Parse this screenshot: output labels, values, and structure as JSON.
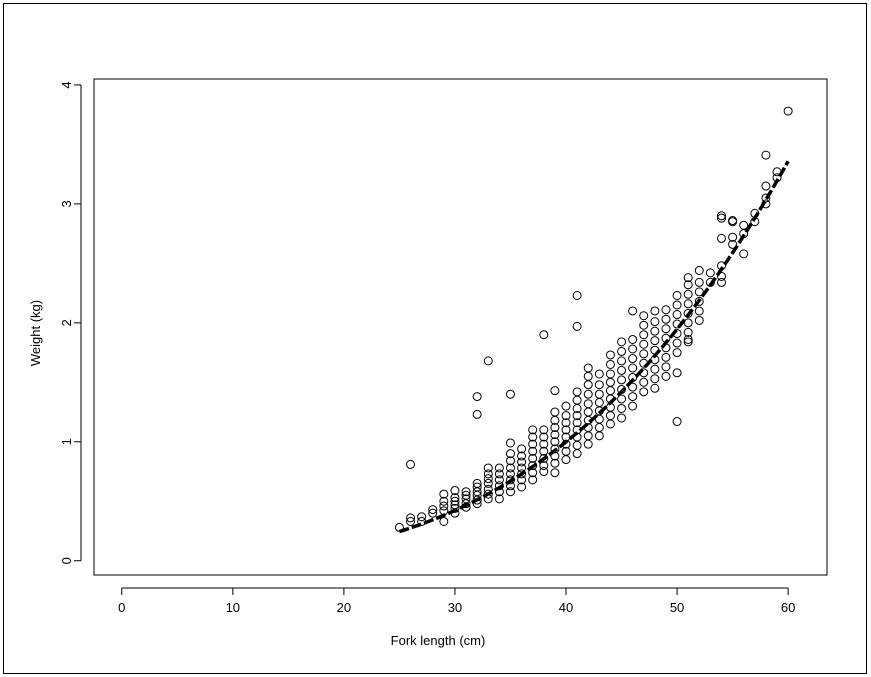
{
  "chart_data": {
    "type": "scatter",
    "title": "",
    "xlabel": "Fork length (cm)",
    "ylabel": "Weight (kg)",
    "xlim": [
      -2.5,
      63.5
    ],
    "ylim": [
      -0.12,
      4.05
    ],
    "x_ticks": [
      0,
      10,
      20,
      30,
      40,
      50,
      60
    ],
    "y_ticks": [
      0,
      1,
      2,
      3,
      4
    ],
    "grid": false,
    "legend": "none",
    "marker": "open-circle",
    "colors": {
      "points": "#000000",
      "line": "#000000",
      "background": "#ffffff"
    },
    "fit_curve": {
      "type": "power",
      "a": 1.62e-05,
      "b": 2.99,
      "x_range": [
        25,
        60
      ],
      "style": "thick-dashed"
    },
    "band_points": [
      [
        25,
        0.28
      ],
      [
        26,
        0.33
      ],
      [
        26,
        0.36
      ],
      [
        27,
        0.33
      ],
      [
        27,
        0.37
      ],
      [
        28,
        0.4
      ],
      [
        28,
        0.43
      ],
      [
        29,
        0.33
      ],
      [
        29,
        0.42
      ],
      [
        29,
        0.46
      ],
      [
        29,
        0.5
      ],
      [
        29,
        0.56
      ],
      [
        30,
        0.4
      ],
      [
        30,
        0.44
      ],
      [
        30,
        0.47
      ],
      [
        30,
        0.5
      ],
      [
        30,
        0.53
      ],
      [
        30,
        0.59
      ],
      [
        31,
        0.45
      ],
      [
        31,
        0.48
      ],
      [
        31,
        0.52
      ],
      [
        31,
        0.55
      ],
      [
        31,
        0.58
      ],
      [
        32,
        0.48
      ],
      [
        32,
        0.51
      ],
      [
        32,
        0.55
      ],
      [
        32,
        0.58
      ],
      [
        32,
        0.62
      ],
      [
        32,
        0.65
      ],
      [
        33,
        0.52
      ],
      [
        33,
        0.56
      ],
      [
        33,
        0.6
      ],
      [
        33,
        0.65
      ],
      [
        33,
        0.69
      ],
      [
        33,
        0.73
      ],
      [
        33,
        0.78
      ],
      [
        34,
        0.52
      ],
      [
        34,
        0.58
      ],
      [
        34,
        0.63
      ],
      [
        34,
        0.68
      ],
      [
        34,
        0.73
      ],
      [
        34,
        0.78
      ],
      [
        35,
        0.58
      ],
      [
        35,
        0.63
      ],
      [
        35,
        0.68
      ],
      [
        35,
        0.73
      ],
      [
        35,
        0.78
      ],
      [
        35,
        0.84
      ],
      [
        35,
        0.9
      ],
      [
        35,
        0.99
      ],
      [
        36,
        0.62
      ],
      [
        36,
        0.68
      ],
      [
        36,
        0.73
      ],
      [
        36,
        0.78
      ],
      [
        36,
        0.83
      ],
      [
        36,
        0.88
      ],
      [
        36,
        0.94
      ],
      [
        37,
        0.68
      ],
      [
        37,
        0.74
      ],
      [
        37,
        0.8
      ],
      [
        37,
        0.86
      ],
      [
        37,
        0.92
      ],
      [
        37,
        0.98
      ],
      [
        37,
        1.04
      ],
      [
        37,
        1.1
      ],
      [
        38,
        0.75
      ],
      [
        38,
        0.8
      ],
      [
        38,
        0.86
      ],
      [
        38,
        0.92
      ],
      [
        38,
        0.98
      ],
      [
        38,
        1.04
      ],
      [
        38,
        1.1
      ],
      [
        39,
        0.74
      ],
      [
        39,
        0.82
      ],
      [
        39,
        0.88
      ],
      [
        39,
        0.94
      ],
      [
        39,
        1.0
      ],
      [
        39,
        1.06
      ],
      [
        39,
        1.12
      ],
      [
        39,
        1.18
      ],
      [
        39,
        1.25
      ],
      [
        40,
        0.85
      ],
      [
        40,
        0.92
      ],
      [
        40,
        0.98
      ],
      [
        40,
        1.04
      ],
      [
        40,
        1.1
      ],
      [
        40,
        1.16
      ],
      [
        40,
        1.22
      ],
      [
        40,
        1.3
      ],
      [
        41,
        0.9
      ],
      [
        41,
        0.97
      ],
      [
        41,
        1.04
      ],
      [
        41,
        1.1
      ],
      [
        41,
        1.16
      ],
      [
        41,
        1.22
      ],
      [
        41,
        1.28
      ],
      [
        41,
        1.35
      ],
      [
        41,
        1.42
      ],
      [
        42,
        0.98
      ],
      [
        42,
        1.05
      ],
      [
        42,
        1.12
      ],
      [
        42,
        1.18
      ],
      [
        42,
        1.25
      ],
      [
        42,
        1.32
      ],
      [
        42,
        1.4
      ],
      [
        42,
        1.48
      ],
      [
        42,
        1.55
      ],
      [
        42,
        1.62
      ],
      [
        43,
        1.05
      ],
      [
        43,
        1.12
      ],
      [
        43,
        1.19
      ],
      [
        43,
        1.26
      ],
      [
        43,
        1.33
      ],
      [
        43,
        1.4
      ],
      [
        43,
        1.48
      ],
      [
        43,
        1.57
      ],
      [
        44,
        1.15
      ],
      [
        44,
        1.22
      ],
      [
        44,
        1.29
      ],
      [
        44,
        1.36
      ],
      [
        44,
        1.43
      ],
      [
        44,
        1.5
      ],
      [
        44,
        1.57
      ],
      [
        44,
        1.65
      ],
      [
        44,
        1.73
      ],
      [
        45,
        1.2
      ],
      [
        45,
        1.28
      ],
      [
        45,
        1.36
      ],
      [
        45,
        1.44
      ],
      [
        45,
        1.52
      ],
      [
        45,
        1.6
      ],
      [
        45,
        1.68
      ],
      [
        45,
        1.76
      ],
      [
        45,
        1.84
      ],
      [
        46,
        1.3
      ],
      [
        46,
        1.38
      ],
      [
        46,
        1.46
      ],
      [
        46,
        1.54
      ],
      [
        46,
        1.62
      ],
      [
        46,
        1.7
      ],
      [
        46,
        1.78
      ],
      [
        46,
        1.86
      ],
      [
        47,
        1.42
      ],
      [
        47,
        1.5
      ],
      [
        47,
        1.58
      ],
      [
        47,
        1.66
      ],
      [
        47,
        1.74
      ],
      [
        47,
        1.82
      ],
      [
        47,
        1.9
      ],
      [
        47,
        1.98
      ],
      [
        47,
        2.06
      ],
      [
        48,
        1.45
      ],
      [
        48,
        1.53
      ],
      [
        48,
        1.61
      ],
      [
        48,
        1.69
      ],
      [
        48,
        1.77
      ],
      [
        48,
        1.85
      ],
      [
        48,
        1.93
      ],
      [
        48,
        2.01
      ],
      [
        48,
        2.1
      ],
      [
        49,
        1.55
      ],
      [
        49,
        1.63
      ],
      [
        49,
        1.71
      ],
      [
        49,
        1.79
      ],
      [
        49,
        1.87
      ],
      [
        49,
        1.95
      ],
      [
        49,
        2.03
      ],
      [
        49,
        2.11
      ],
      [
        50,
        1.75
      ],
      [
        50,
        1.83
      ],
      [
        50,
        1.91
      ],
      [
        50,
        1.99
      ],
      [
        50,
        2.07
      ],
      [
        50,
        2.15
      ],
      [
        50,
        2.23
      ],
      [
        51,
        1.84
      ],
      [
        51,
        1.92
      ],
      [
        51,
        2.0
      ],
      [
        51,
        2.08
      ],
      [
        51,
        2.16
      ],
      [
        51,
        2.24
      ],
      [
        51,
        2.32
      ],
      [
        51,
        2.38
      ],
      [
        52,
        2.02
      ],
      [
        52,
        2.1
      ],
      [
        52,
        2.18
      ],
      [
        52,
        2.26
      ],
      [
        52,
        2.34
      ],
      [
        52,
        2.44
      ],
      [
        53,
        2.34
      ],
      [
        53,
        2.42
      ],
      [
        54,
        2.34
      ],
      [
        54,
        2.39
      ],
      [
        54,
        2.48
      ],
      [
        54,
        2.71
      ],
      [
        55,
        2.66
      ],
      [
        55,
        2.72
      ],
      [
        55,
        2.85
      ],
      [
        56,
        2.58
      ],
      [
        56,
        2.75
      ],
      [
        56,
        2.82
      ],
      [
        57,
        2.85
      ],
      [
        57,
        2.92
      ],
      [
        58,
        3.0
      ],
      [
        58,
        3.05
      ],
      [
        58,
        3.15
      ],
      [
        59,
        3.22
      ],
      [
        59,
        3.27
      ]
    ],
    "outliers": [
      [
        26,
        0.81
      ],
      [
        32,
        1.23
      ],
      [
        32,
        1.38
      ],
      [
        33,
        1.68
      ],
      [
        35,
        1.4
      ],
      [
        38,
        1.9
      ],
      [
        39,
        1.43
      ],
      [
        41,
        1.97
      ],
      [
        41,
        2.23
      ],
      [
        46,
        2.1
      ],
      [
        50,
        1.17
      ],
      [
        50,
        1.58
      ],
      [
        51,
        1.86
      ],
      [
        54,
        2.88
      ],
      [
        54,
        2.9
      ],
      [
        55,
        2.86
      ],
      [
        58,
        3.41
      ],
      [
        60,
        3.78
      ]
    ]
  }
}
